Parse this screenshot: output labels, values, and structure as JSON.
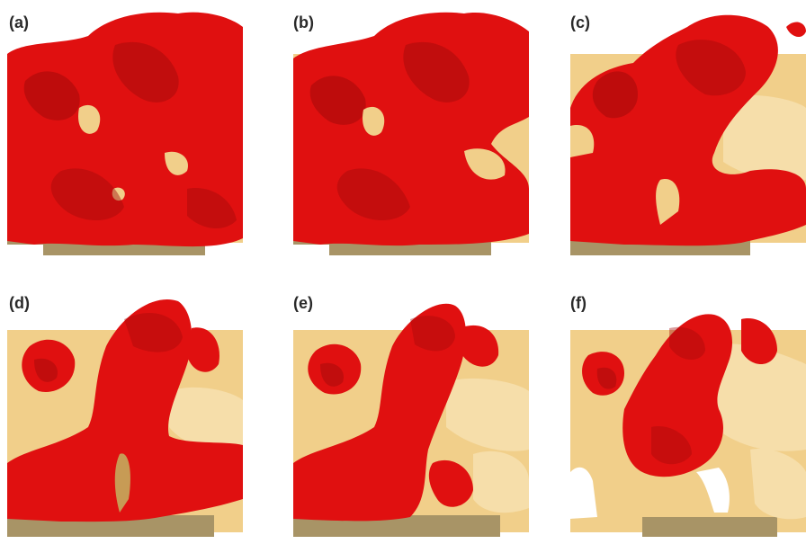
{
  "figure": {
    "panels": [
      {
        "id": "a",
        "label": "(a)"
      },
      {
        "id": "b",
        "label": "(b)"
      },
      {
        "id": "c",
        "label": "(c)"
      },
      {
        "id": "d",
        "label": "(d)"
      },
      {
        "id": "e",
        "label": "(e)"
      },
      {
        "id": "f",
        "label": "(f)"
      }
    ],
    "colors": {
      "phase_red": "#e01010",
      "phase_red_shadow": "#8e0606",
      "solid_tan": "#f1cf8a",
      "solid_tan_light": "#f6deaa",
      "solid_shadow": "#c79b55",
      "substrate": "#a89466"
    }
  }
}
